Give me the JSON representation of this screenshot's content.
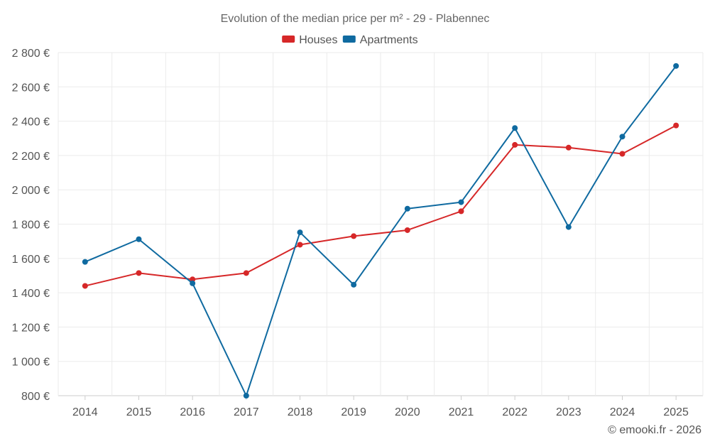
{
  "chart_data": {
    "type": "line",
    "title": "Evolution of the median price per m² - 29 - Plabennec",
    "xlabel": "",
    "ylabel": "",
    "categories": [
      "2014",
      "2015",
      "2016",
      "2017",
      "2018",
      "2019",
      "2020",
      "2021",
      "2022",
      "2023",
      "2024",
      "2025"
    ],
    "ylim": [
      800,
      2800
    ],
    "yticks": [
      800,
      1000,
      1200,
      1400,
      1600,
      1800,
      2000,
      2200,
      2400,
      2600,
      2800
    ],
    "ytick_labels": [
      "800 €",
      "1 000 €",
      "1 200 €",
      "1 400 €",
      "1 600 €",
      "1 800 €",
      "2 000 €",
      "2 200 €",
      "2 400 €",
      "2 600 €",
      "2 800 €"
    ],
    "grid": true,
    "legend_position": "top-center",
    "series": [
      {
        "name": "Houses",
        "color": "#d62728",
        "values": [
          1440,
          1515,
          1478,
          1515,
          1680,
          1730,
          1765,
          1875,
          2262,
          2246,
          2210,
          2375
        ]
      },
      {
        "name": "Apartments",
        "color": "#0f6aa0",
        "values": [
          1580,
          1712,
          1455,
          800,
          1752,
          1447,
          1890,
          1928,
          2360,
          1783,
          2310,
          2722
        ]
      }
    ]
  },
  "credit": "© emooki.fr - 2026"
}
